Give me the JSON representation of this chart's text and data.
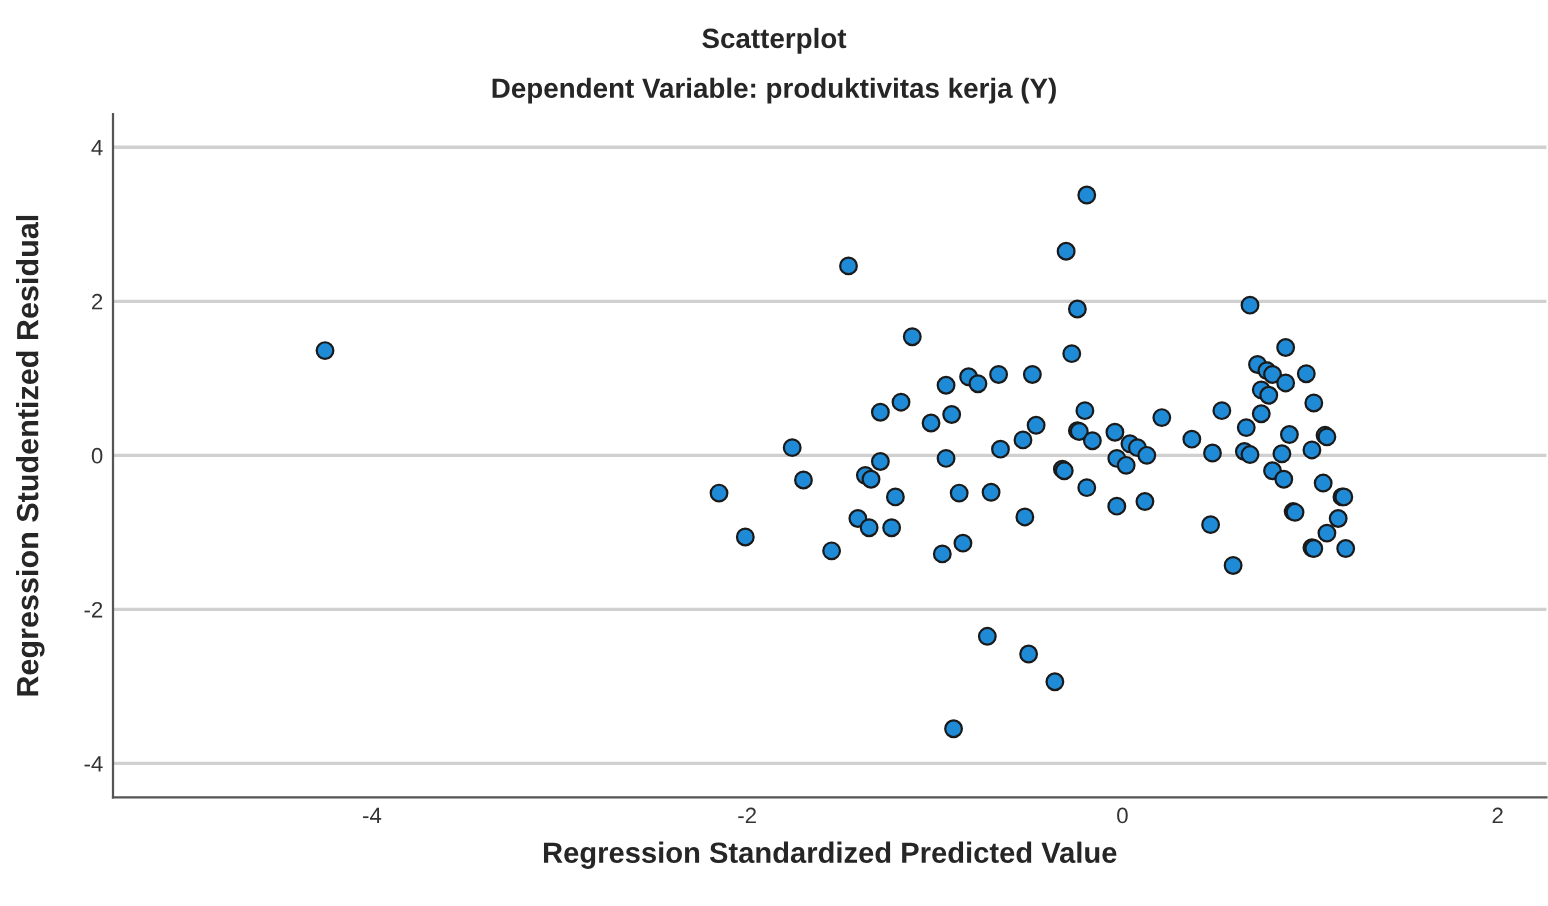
{
  "chart_data": {
    "type": "scatter",
    "title": "Scatterplot",
    "subtitle": "Dependent Variable: produktivitas kerja (Y)",
    "xlabel": "Regression Standardized Predicted Value",
    "ylabel": "Regression Studentized Residual",
    "xlim": [
      -5.38,
      2.26
    ],
    "ylim": [
      -4.44,
      4.43
    ],
    "xticks": [
      {
        "value": -4,
        "label": "-4"
      },
      {
        "value": -2,
        "label": "-2"
      },
      0,
      2
    ],
    "yticks": [
      {
        "value": -4,
        "label": "-4"
      },
      {
        "value": -2,
        "label": "-2"
      },
      0,
      2,
      4
    ],
    "grid": "y",
    "marker": "circle",
    "series": [
      {
        "color": "#1f8ad6",
        "x": [
          -0.19,
          -0.3,
          -1.46,
          -0.24,
          -1.12,
          -0.27,
          -0.94,
          -0.82,
          -0.77,
          -0.66,
          -0.48,
          -0.2,
          -1.29,
          -1.18,
          -1.02,
          -0.91,
          -0.46,
          -0.53,
          -0.24,
          -0.23,
          -0.16,
          -0.65,
          -1.76,
          -0.94,
          -1.29,
          -2.15,
          -1.7,
          -1.37,
          -1.34,
          -1.21,
          -0.87,
          -0.7,
          -0.32,
          -0.31,
          -0.19,
          -0.52,
          -2.01,
          -1.41,
          -1.35,
          -1.23,
          -1.55,
          -0.96,
          -0.85,
          -0.72,
          -0.5,
          -0.36,
          -0.9,
          0.68,
          0.87,
          0.72,
          0.77,
          0.8,
          0.98,
          0.87,
          0.74,
          0.78,
          1.02,
          0.21,
          0.53,
          0.74,
          0.66,
          -0.04,
          0.89,
          1.08,
          1.09,
          0.37,
          0.04,
          0.08,
          0.13,
          0.48,
          0.65,
          0.68,
          0.85,
          1.01,
          -0.03,
          0.02,
          0.8,
          0.86,
          1.07,
          1.17,
          1.18,
          -0.03,
          0.12,
          0.91,
          0.92,
          1.15,
          0.47,
          1.09,
          1.01,
          1.02,
          1.19,
          0.59,
          -4.25
        ],
        "values": [
          3.38,
          2.65,
          2.46,
          1.9,
          1.54,
          1.32,
          0.91,
          1.02,
          0.93,
          1.05,
          1.05,
          0.58,
          0.56,
          0.69,
          0.42,
          0.53,
          0.39,
          0.2,
          0.32,
          0.31,
          0.19,
          0.08,
          0.1,
          -0.04,
          -0.08,
          -0.49,
          -0.32,
          -0.26,
          -0.31,
          -0.54,
          -0.49,
          -0.48,
          -0.18,
          -0.2,
          -0.42,
          -0.8,
          -1.06,
          -0.82,
          -0.94,
          -0.94,
          -1.24,
          -1.28,
          -1.14,
          -2.35,
          -2.58,
          -2.94,
          -3.55,
          1.95,
          1.4,
          1.18,
          1.1,
          1.05,
          1.06,
          0.94,
          0.85,
          0.78,
          0.68,
          0.49,
          0.58,
          0.54,
          0.36,
          0.3,
          0.27,
          0.26,
          0.24,
          0.21,
          0.15,
          0.1,
          0.0,
          0.03,
          0.05,
          0.01,
          0.02,
          0.07,
          -0.04,
          -0.13,
          -0.2,
          -0.31,
          -0.36,
          -0.54,
          -0.54,
          -0.66,
          -0.6,
          -0.73,
          -0.74,
          -0.82,
          -0.9,
          -1.01,
          -1.2,
          -1.21,
          -1.21,
          -1.43,
          1.36
        ]
      }
    ]
  }
}
